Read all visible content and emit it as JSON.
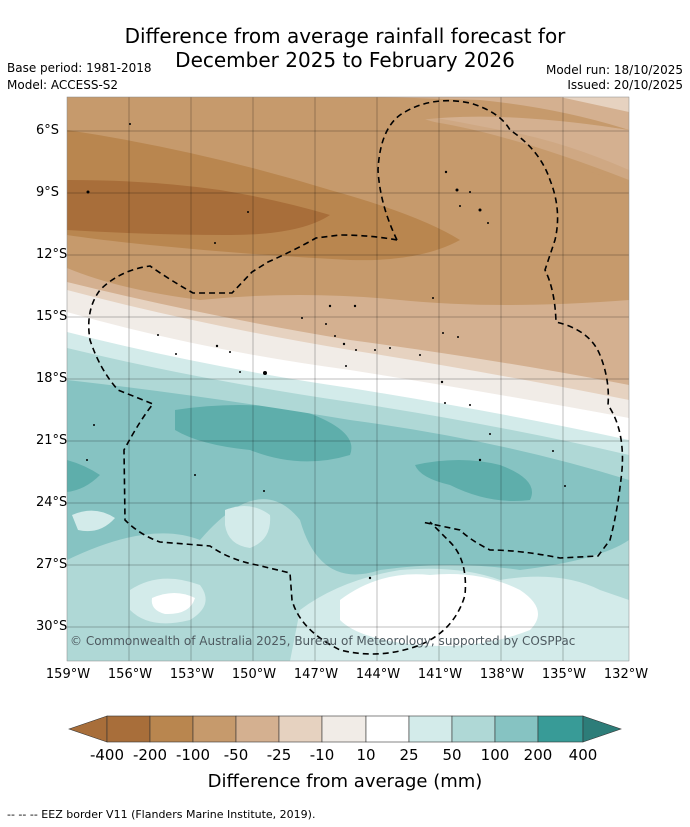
{
  "title_line1": "Difference from average rainfall forecast for",
  "title_line2": "December 2025 to February 2026",
  "base_period": "Base period: 1981-2018",
  "model": "Model: ACCESS-S2",
  "model_run": "Model run: 18/10/2025",
  "issued": "Issued: 20/10/2025",
  "copyright": "© Commonwealth of Australia 2025, Bureau of Meteorology, supported by COSPPac",
  "lat_labels": [
    "6°S",
    "9°S",
    "12°S",
    "15°S",
    "18°S",
    "21°S",
    "24°S",
    "27°S",
    "30°S"
  ],
  "lon_labels": [
    "159°W",
    "156°W",
    "153°W",
    "150°W",
    "147°W",
    "144°W",
    "141°W",
    "138°W",
    "135°W",
    "132°W"
  ],
  "colorbar": {
    "labels": [
      "-400",
      "-200",
      "-100",
      "-50",
      "-25",
      "-10",
      "10",
      "25",
      "50",
      "100",
      "200",
      "400"
    ],
    "colors": [
      "#a86e3a",
      "#b9864f",
      "#c69a6c",
      "#d4b090",
      "#e6d2c0",
      "#f1ece7",
      "#ffffff",
      "#d3ebea",
      "#afd8d6",
      "#86c3c2",
      "#5eaeab",
      "#389b97",
      "#2d7d79"
    ],
    "title": "Difference from average (mm)"
  },
  "footer": "--  --  -- EEZ border V11 (Flanders Marine Institute, 2019)."
}
